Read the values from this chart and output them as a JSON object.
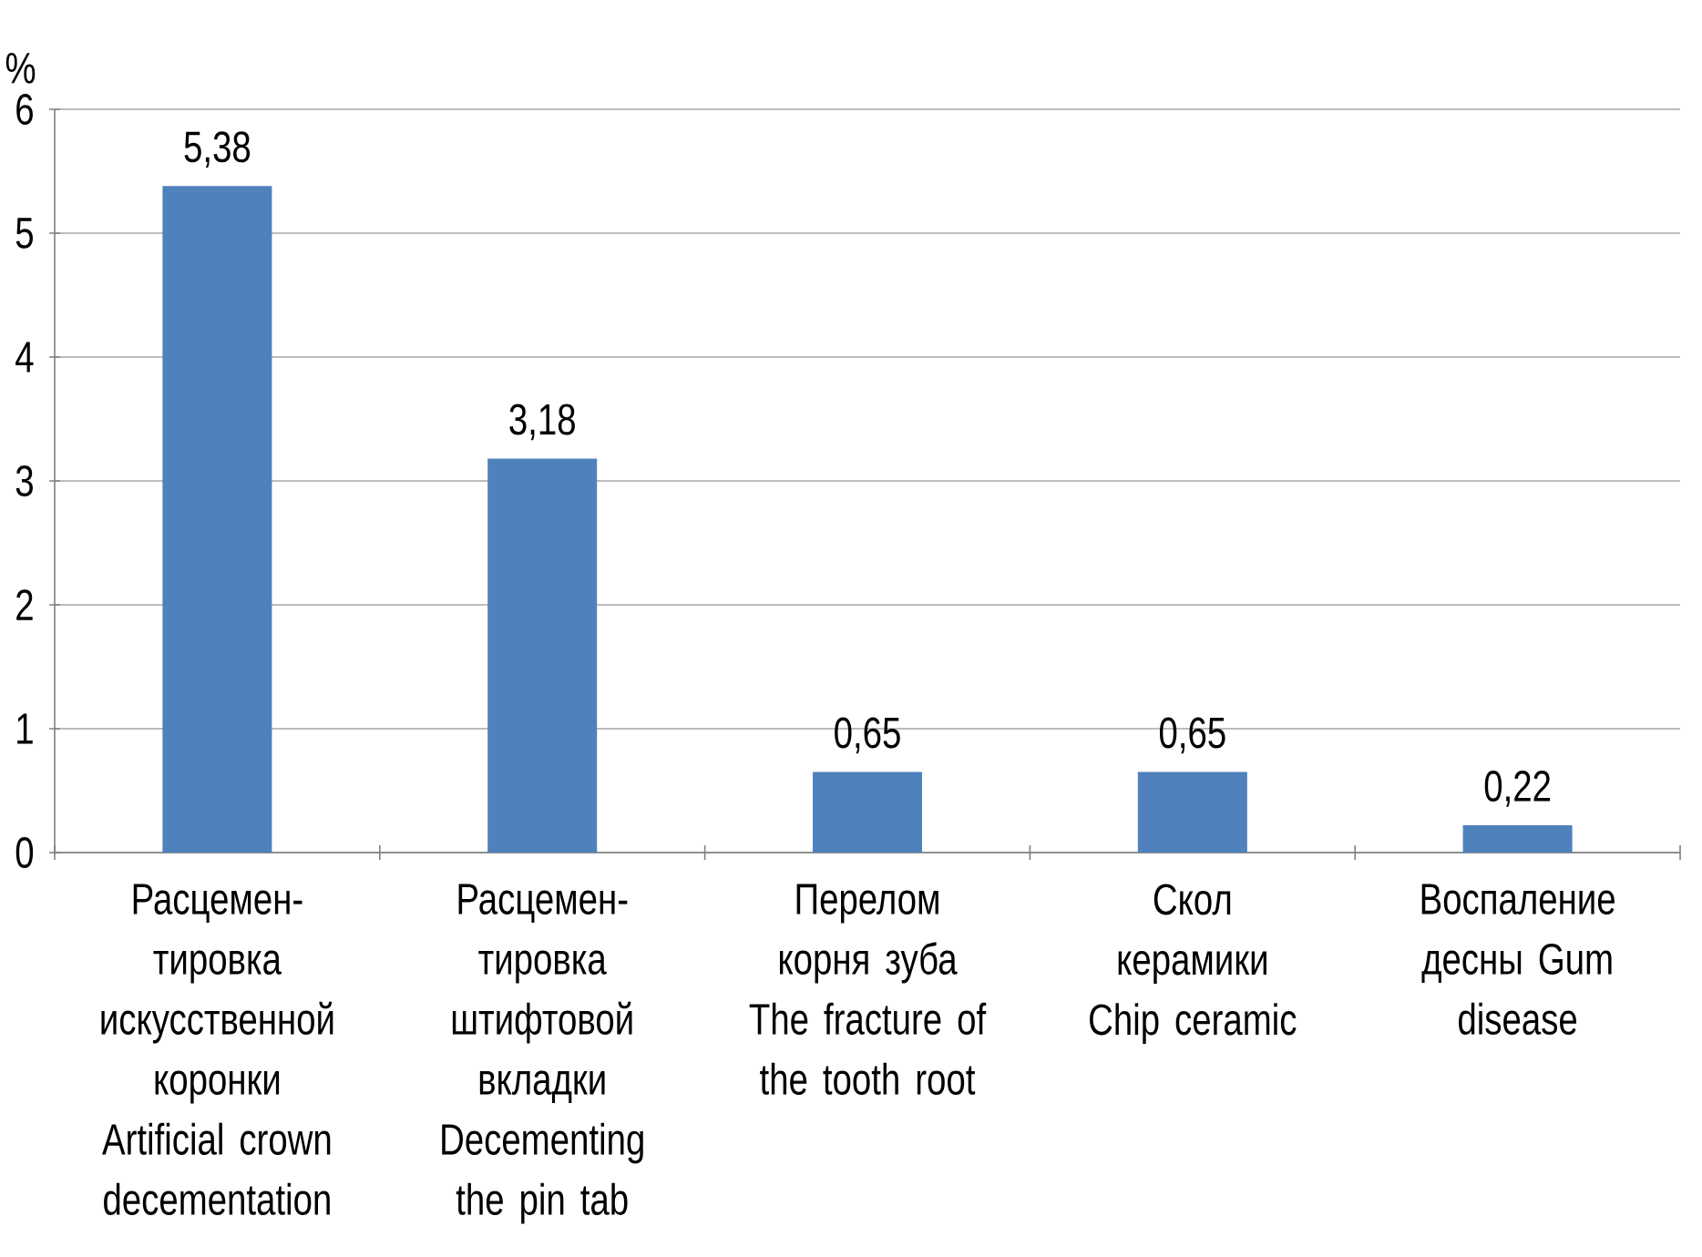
{
  "chart_data": {
    "type": "bar",
    "ylabel": "%",
    "categories": [
      "Расцемен-тировка искусственной коронки Artificial crown decementation",
      "Расцемен-тировка штифтовой вкладки Decementing the pin tab",
      "Перелом корня зуба The fracture of the tooth root",
      "Скол керамики Chip ceramic",
      "Воспаление десны Gum disease"
    ],
    "values": [
      5.38,
      3.18,
      0.65,
      0.65,
      0.22
    ],
    "value_labels": [
      "5,38",
      "3,18",
      "0,65",
      "0,65",
      "0,22"
    ],
    "color": "#4f81bd",
    "ylim": [
      0,
      6
    ],
    "yticks": [
      0,
      1,
      2,
      3,
      4,
      5,
      6
    ],
    "grid": "y"
  }
}
